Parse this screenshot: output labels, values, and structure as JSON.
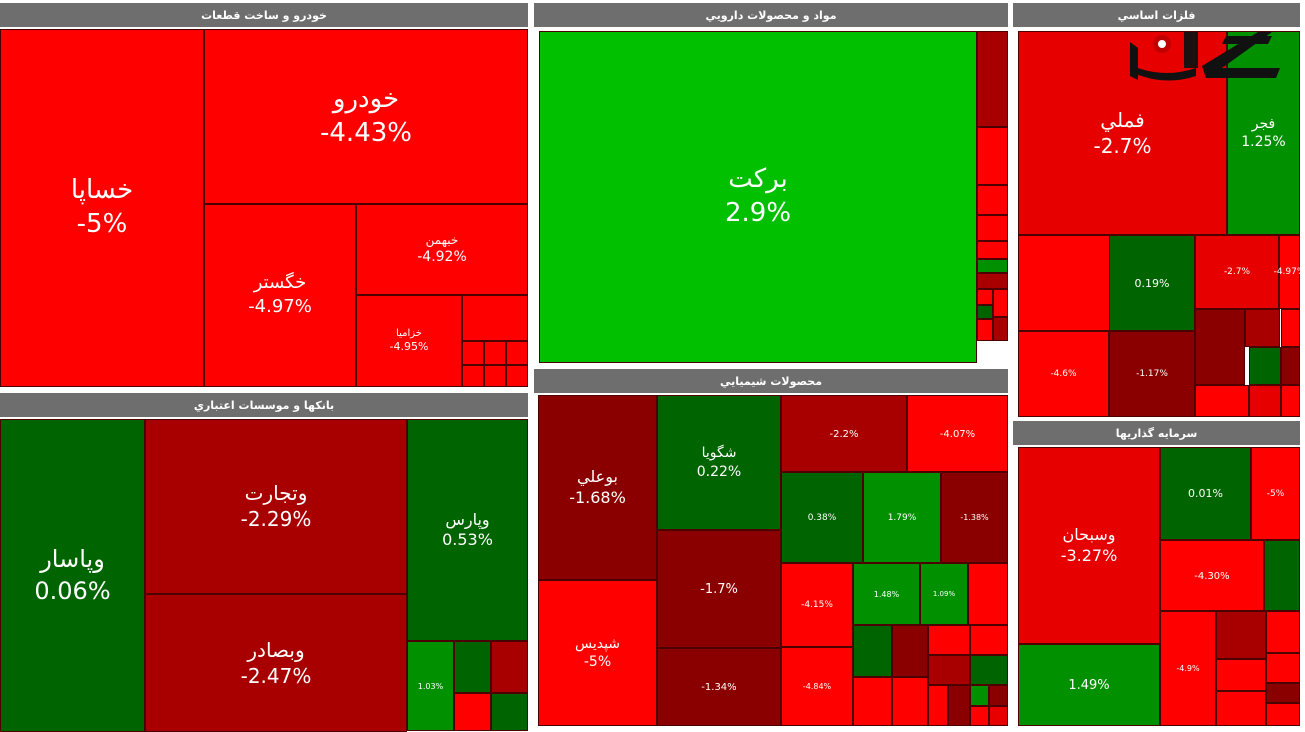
{
  "chart_data": {
    "type": "treemap",
    "sectors": [
      {
        "name": "خودرو و ساخت قطعات",
        "tiles": [
          {
            "symbol": "خساپا",
            "change": "-5%",
            "value": -5
          },
          {
            "symbol": "خودرو",
            "change": "-4.43%",
            "value": -4.43
          },
          {
            "symbol": "خگستر",
            "change": "-4.97%",
            "value": -4.97
          },
          {
            "symbol": "خبهمن",
            "change": "-4.92%",
            "value": -4.92
          },
          {
            "symbol": "خزامیا",
            "change": "-4.95%",
            "value": -4.95
          },
          {
            "symbol": "",
            "change": "",
            "value": -4.8
          },
          {
            "symbol": "",
            "change": "",
            "value": -4.9
          },
          {
            "symbol": "",
            "change": "",
            "value": -4.7
          },
          {
            "symbol": "",
            "change": "",
            "value": -4.9
          },
          {
            "symbol": "",
            "change": "",
            "value": -4.6
          },
          {
            "symbol": "",
            "change": "",
            "value": -4.8
          },
          {
            "symbol": "",
            "change": "",
            "value": -4.9
          }
        ]
      },
      {
        "name": "مواد و محصولات دارویي",
        "tiles": [
          {
            "symbol": "برکت",
            "change": "2.9%",
            "value": 2.9
          },
          {
            "symbol": "",
            "change": "",
            "value": -2.1
          },
          {
            "symbol": "",
            "change": "",
            "value": -4.6
          },
          {
            "symbol": "",
            "change": "",
            "value": -4.8
          },
          {
            "symbol": "",
            "change": "",
            "value": -4.7
          },
          {
            "symbol": "",
            "change": "",
            "value": -4.9
          },
          {
            "symbol": "",
            "change": "",
            "value": 1.2
          },
          {
            "symbol": "",
            "change": "",
            "value": -2.3
          },
          {
            "symbol": "",
            "change": "",
            "value": -4.5
          },
          {
            "symbol": "",
            "change": "",
            "value": -4.8
          },
          {
            "symbol": "",
            "change": "",
            "value": 0.4
          },
          {
            "symbol": "",
            "change": "",
            "value": -4.6
          },
          {
            "symbol": "",
            "change": "",
            "value": -2.0
          }
        ]
      },
      {
        "name": "فلزات اساسي",
        "tiles": [
          {
            "symbol": "فملي",
            "change": "-2.7%",
            "value": -2.7
          },
          {
            "symbol": "فجر",
            "change": "1.25%",
            "value": 1.25
          },
          {
            "symbol": "",
            "change": "",
            "value": -4.9
          },
          {
            "symbol": "",
            "change": "0.19%",
            "value": 0.19
          },
          {
            "symbol": "",
            "change": "-2.7%",
            "value": -2.7
          },
          {
            "symbol": "",
            "change": "-4.97%",
            "value": -4.97
          },
          {
            "symbol": "",
            "change": "-4.6%",
            "value": -4.6
          },
          {
            "symbol": "",
            "change": "-1.17%",
            "value": -1.17
          },
          {
            "symbol": "",
            "change": "",
            "value": -1.5
          },
          {
            "symbol": "",
            "change": "",
            "value": -2.0
          },
          {
            "symbol": "",
            "change": "",
            "value": 0.3
          },
          {
            "symbol": "",
            "change": "",
            "value": -4.2
          },
          {
            "symbol": "",
            "change": "",
            "value": -1.8
          },
          {
            "symbol": "",
            "change": "",
            "value": -4.8
          },
          {
            "symbol": "",
            "change": "",
            "value": -2.5
          },
          {
            "symbol": "",
            "change": "",
            "value": -4.6
          }
        ]
      },
      {
        "name": "بانکها و موسسات اعتباري",
        "tiles": [
          {
            "symbol": "وپاسار",
            "change": "0.06%",
            "value": 0.06
          },
          {
            "symbol": "وتجارت",
            "change": "-2.29%",
            "value": -2.29
          },
          {
            "symbol": "وبصادر",
            "change": "-2.47%",
            "value": -2.47
          },
          {
            "symbol": "وپارس",
            "change": "0.53%",
            "value": 0.53
          },
          {
            "symbol": "",
            "change": "1.03%",
            "value": 1.03
          },
          {
            "symbol": "",
            "change": "",
            "value": 0.4
          },
          {
            "symbol": "",
            "change": "",
            "value": -2.1
          },
          {
            "symbol": "",
            "change": "",
            "value": -4.6
          },
          {
            "symbol": "",
            "change": "",
            "value": 0.2
          }
        ]
      },
      {
        "name": "محصولات شيميايي",
        "tiles": [
          {
            "symbol": "بوعلي",
            "change": "-1.68%",
            "value": -1.68
          },
          {
            "symbol": "شگويا",
            "change": "0.22%",
            "value": 0.22
          },
          {
            "symbol": "",
            "change": "-2.2%",
            "value": -2.2
          },
          {
            "symbol": "",
            "change": "-4.07%",
            "value": -4.07
          },
          {
            "symbol": "شپدیس",
            "change": "-5%",
            "value": -5
          },
          {
            "symbol": "",
            "change": "-1.7%",
            "value": -1.7
          },
          {
            "symbol": "",
            "change": "-1.34%",
            "value": -1.34
          },
          {
            "symbol": "",
            "change": "0.38%",
            "value": 0.38
          },
          {
            "symbol": "",
            "change": "1.79%",
            "value": 1.79
          },
          {
            "symbol": "",
            "change": "-1.38%",
            "value": -1.38
          },
          {
            "symbol": "",
            "change": "-4.15%",
            "value": -4.15
          },
          {
            "symbol": "",
            "change": "1.48%",
            "value": 1.48
          },
          {
            "symbol": "",
            "change": "1.09%",
            "value": 1.09
          },
          {
            "symbol": "",
            "change": "",
            "value": -4.8
          },
          {
            "symbol": "",
            "change": "-4.84%",
            "value": -4.84
          },
          {
            "symbol": "",
            "change": "",
            "value": 0.5
          },
          {
            "symbol": "",
            "change": "",
            "value": -1.9
          },
          {
            "symbol": "",
            "change": "",
            "value": -4.5
          },
          {
            "symbol": "",
            "change": "",
            "value": -4.7
          },
          {
            "symbol": "",
            "change": "",
            "value": -2.2
          },
          {
            "symbol": "",
            "change": "",
            "value": 0.6
          },
          {
            "symbol": "",
            "change": "",
            "value": -4.9
          },
          {
            "symbol": "",
            "change": "",
            "value": -4.6
          },
          {
            "symbol": "",
            "change": "",
            "value": -4.9
          },
          {
            "symbol": "",
            "change": "",
            "value": -1.5
          },
          {
            "symbol": "",
            "change": "",
            "value": 1.4
          },
          {
            "symbol": "",
            "change": "",
            "value": -1.7
          },
          {
            "symbol": "",
            "change": "",
            "value": -4.8
          },
          {
            "symbol": "",
            "change": "",
            "value": -2.6
          }
        ]
      },
      {
        "name": "سرمایه گذاریها",
        "tiles": [
          {
            "symbol": "وسبحان",
            "change": "-3.27%",
            "value": -3.27
          },
          {
            "symbol": "",
            "change": "0.01%",
            "value": 0.01
          },
          {
            "symbol": "",
            "change": "-5%",
            "value": -5
          },
          {
            "symbol": "",
            "change": "-4.30%",
            "value": -4.3
          },
          {
            "symbol": "",
            "change": "",
            "value": 0.5
          },
          {
            "symbol": "",
            "change": "1.49%",
            "value": 1.49
          },
          {
            "symbol": "",
            "change": "-4.9%",
            "value": -4.9
          },
          {
            "symbol": "",
            "change": "",
            "value": -2.1
          },
          {
            "symbol": "",
            "change": "",
            "value": -4.7
          },
          {
            "symbol": "",
            "change": "",
            "value": -4.8
          },
          {
            "symbol": "",
            "change": "",
            "value": -4.6
          },
          {
            "symbol": "",
            "change": "",
            "value": -4.9
          },
          {
            "symbol": "",
            "change": "",
            "value": -1.9
          },
          {
            "symbol": "",
            "change": "",
            "value": -4.6
          }
        ]
      }
    ]
  }
}
